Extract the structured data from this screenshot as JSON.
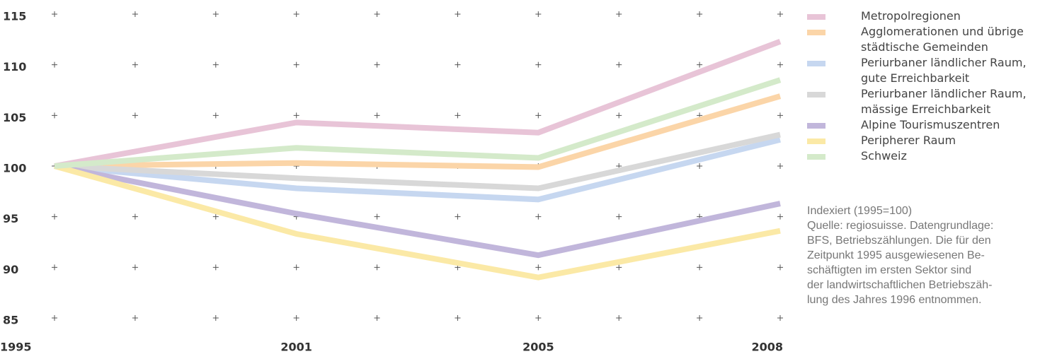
{
  "chart_data": {
    "type": "line",
    "categories": [
      "1995",
      "2001",
      "2005",
      "2008"
    ],
    "series": [
      {
        "name": "Metropolregionen",
        "color": "#e8c4d7",
        "values": [
          100,
          104.3,
          103.3,
          112.3
        ]
      },
      {
        "name": "Agglomerationen und übrige städtische Gemeinden",
        "color": "#fbd5a8",
        "values": [
          100,
          100.3,
          99.9,
          106.9
        ]
      },
      {
        "name": "Periurbaner ländlicher Raum, gute Erreichbarkeit",
        "color": "#c6d7f0",
        "values": [
          100,
          97.8,
          96.7,
          102.6
        ]
      },
      {
        "name": "Periurbaner ländlicher Raum, mässige Erreichbarkeit",
        "color": "#d8d8d8",
        "values": [
          100,
          98.8,
          97.8,
          103.1
        ]
      },
      {
        "name": "Alpine Tourismuszentren",
        "color": "#c1b6db",
        "values": [
          100,
          95.3,
          91.2,
          96.3
        ]
      },
      {
        "name": "Peripherer Raum",
        "color": "#fbe9a6",
        "values": [
          100,
          93.3,
          89.0,
          93.6
        ]
      },
      {
        "name": "Schweiz",
        "color": "#d4eaca",
        "values": [
          100,
          101.8,
          100.8,
          108.5
        ]
      }
    ],
    "ylim": [
      85,
      115
    ],
    "yticks": [
      85,
      90,
      95,
      100,
      105,
      110,
      115
    ],
    "grid": true,
    "notes": [
      "Indexiert (1995=100)",
      "Quelle: regiosuisse. Datengrundlage:",
      "BFS, Betriebszählungen. Die für den",
      "Zeitpunkt 1995 ausgewiesenen Be-",
      "schäftigten im ersten Sektor sind",
      "der landwirtschaftlichen Betriebszäh-",
      "lung des Jahres 1996 entnommen."
    ]
  }
}
